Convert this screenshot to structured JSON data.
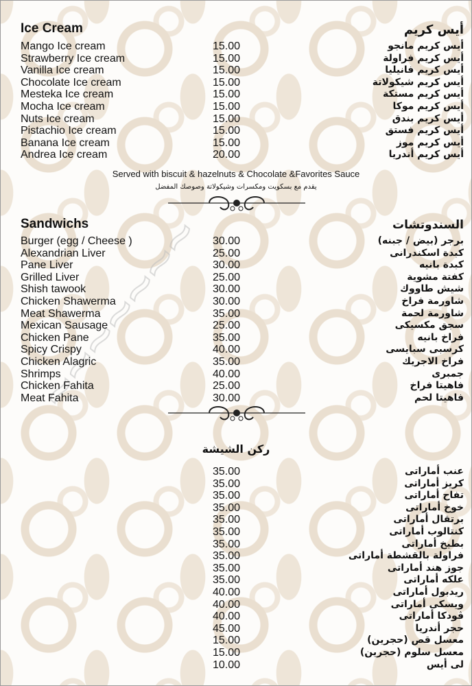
{
  "ice_cream": {
    "title_en": "Ice Cream",
    "title_ar": "أيس كريم",
    "items": [
      {
        "en": "Mango Ice cream",
        "price": "15.00",
        "ar": "أيس كريم مانجو"
      },
      {
        "en": "Strawberry Ice cream",
        "price": "15.00",
        "ar": "أيس كريم فراولة"
      },
      {
        "en": "Vanilla Ice cream",
        "price": "15.00",
        "ar": "أيس كريم فانيليا"
      },
      {
        "en": "Chocolate Ice cream",
        "price": "15.00",
        "ar": "أيس كريم شيكولاتة"
      },
      {
        "en": "Mesteka Ice cream",
        "price": "15.00",
        "ar": "أيس كريم مستكة"
      },
      {
        "en": "Mocha Ice cream",
        "price": "15.00",
        "ar": "أيس كريم موكا"
      },
      {
        "en": "Nuts Ice cream",
        "price": "15.00",
        "ar": "أيس كريم بندق"
      },
      {
        "en": "Pistachio Ice cream",
        "price": "15.00",
        "ar": "أيس كريم فستق"
      },
      {
        "en": "Banana Ice cream",
        "price": "15.00",
        "ar": "أيس كريم موز"
      },
      {
        "en": "Andrea Ice cream",
        "price": "20.00",
        "ar": "أيس كريم أندريا"
      }
    ],
    "note_en": "Served with biscuit & hazelnuts & Chocolate &Favorites Sauce",
    "note_ar": "يقدم مع بسكويت ومكسرات وشيكولاتة وصوصك المفضل"
  },
  "sandwiches": {
    "title_en": "Sandwichs",
    "title_ar": "السندوتشات",
    "items": [
      {
        "en": "Burger (egg / Cheese )",
        "price": "30.00",
        "ar": "برجر (بيض / جبنه)"
      },
      {
        "en": "Alexandrian Liver",
        "price": "25.00",
        "ar": "كبدة اسكندرانى"
      },
      {
        "en": "Pane Liver",
        "price": "30.00",
        "ar": "كبدة بانيه"
      },
      {
        "en": "Grilled Liver",
        "price": "25.00",
        "ar": "كفتة مشوية"
      },
      {
        "en": "Shish tawook",
        "price": "30.00",
        "ar": "شيش طاووك"
      },
      {
        "en": "Chicken Shawerma",
        "price": "30.00",
        "ar": "شاورمة فراخ"
      },
      {
        "en": "Meat Shawerma",
        "price": "35.00",
        "ar": "شاورمة لحمة"
      },
      {
        "en": "Mexican Sausage",
        "price": "25.00",
        "ar": "سجق مكسيكى"
      },
      {
        "en": "Chicken Pane",
        "price": "35.00",
        "ar": "فراخ بانيه"
      },
      {
        "en": "Spicy Crispy",
        "price": "40.00",
        "ar": "كرسبى سبايسى"
      },
      {
        "en": "Chicken Alagric",
        "price": "35.00",
        "ar": "فراخ الاجريك"
      },
      {
        "en": "Shrimps",
        "price": "40.00",
        "ar": "جمبرى"
      },
      {
        "en": "Chicken Fahita",
        "price": "25.00",
        "ar": "فاهيتا فراخ"
      },
      {
        "en": "Meat Fahita",
        "price": "30.00",
        "ar": "فاهيتا لحم"
      }
    ]
  },
  "shisha": {
    "title_ar": "ركن الشيشة",
    "items": [
      {
        "price": "35.00",
        "ar": "عنب أماراتى"
      },
      {
        "price": "35.00",
        "ar": "كريز أماراتى"
      },
      {
        "price": "35.00",
        "ar": "تفاح أماراتى"
      },
      {
        "price": "35.00",
        "ar": "خوخ أماراتى"
      },
      {
        "price": "35.00",
        "ar": "برتقال أماراتى"
      },
      {
        "price": "35.00",
        "ar": "كنتالوب أماراتى"
      },
      {
        "price": "35.00",
        "ar": "بطيخ أماراتى"
      },
      {
        "price": "35.00",
        "ar": "فراولة بالقشطة أماراتى"
      },
      {
        "price": "35.00",
        "ar": "جوز هند أماراتى"
      },
      {
        "price": "35.00",
        "ar": "علكه أماراتى"
      },
      {
        "price": "40.00",
        "ar": "ريدبول أماراتى"
      },
      {
        "price": "40.00",
        "ar": "ويسكى أماراتى"
      },
      {
        "price": "40.00",
        "ar": "ڤودكا أماراتى"
      },
      {
        "price": "45.00",
        "ar": "حجر أندريا"
      },
      {
        "price": "15.00",
        "ar": "معسل قص (حجرين)"
      },
      {
        "price": "15.00",
        "ar": "معسل سلوم (حجرين)"
      },
      {
        "price": "10.00",
        "ar": "لى أيس"
      }
    ]
  },
  "colors": {
    "pattern": "#eadfd0",
    "text": "#111111"
  }
}
